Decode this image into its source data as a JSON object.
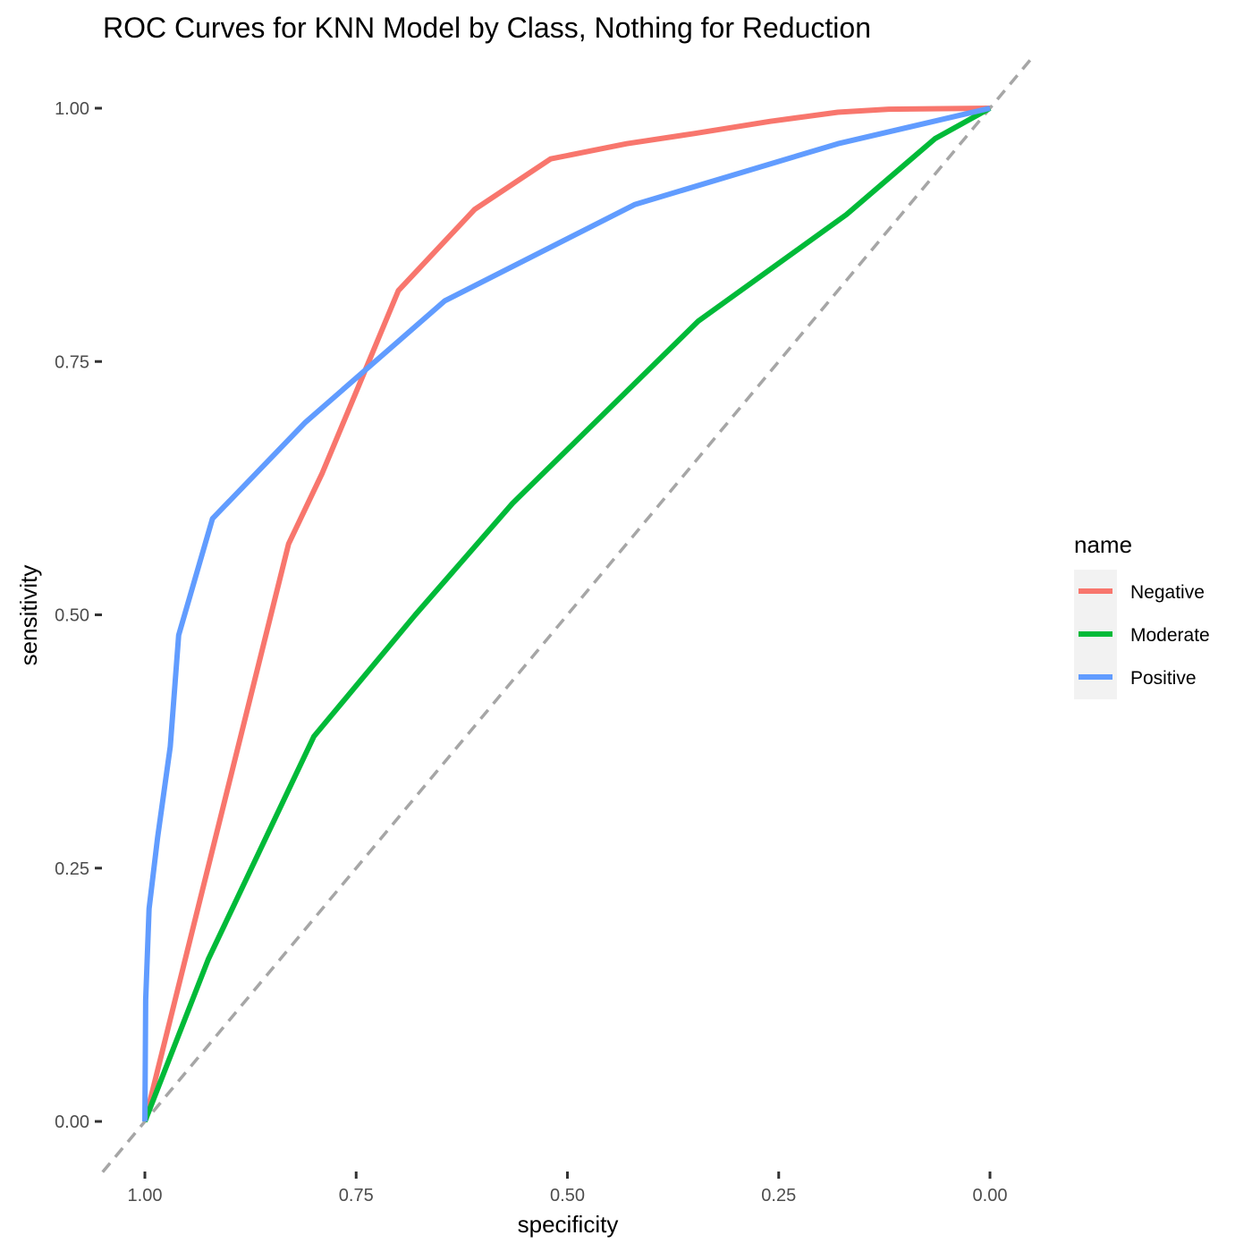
{
  "chart_data": {
    "type": "line",
    "title": "ROC Curves for KNN Model by Class, Nothing for Reduction",
    "xlabel": "specificity",
    "ylabel": "sensitivity",
    "x_reversed": true,
    "xlim": [
      1.05,
      -0.05
    ],
    "ylim": [
      -0.05,
      1.05
    ],
    "x_ticks": [
      {
        "value": 1.0,
        "label": "1.00"
      },
      {
        "value": 0.75,
        "label": "0.75"
      },
      {
        "value": 0.5,
        "label": "0.50"
      },
      {
        "value": 0.25,
        "label": "0.25"
      },
      {
        "value": 0.0,
        "label": "0.00"
      }
    ],
    "y_ticks": [
      {
        "value": 0.0,
        "label": "0.00"
      },
      {
        "value": 0.25,
        "label": "0.25"
      },
      {
        "value": 0.5,
        "label": "0.50"
      },
      {
        "value": 0.75,
        "label": "0.75"
      },
      {
        "value": 1.0,
        "label": "1.00"
      }
    ],
    "grid": false,
    "reference_line": {
      "style": "dashed",
      "color": "#a6a6a6",
      "from": [
        1.05,
        -0.05
      ],
      "to": [
        -0.05,
        1.05
      ]
    },
    "legend": {
      "title": "name",
      "placement": "right"
    },
    "series": [
      {
        "name": "Negative",
        "color": "#f8766d",
        "points": [
          [
            1.0,
            0.0
          ],
          [
            0.83,
            0.57
          ],
          [
            0.79,
            0.64
          ],
          [
            0.75,
            0.72
          ],
          [
            0.7,
            0.82
          ],
          [
            0.61,
            0.9
          ],
          [
            0.52,
            0.95
          ],
          [
            0.43,
            0.965
          ],
          [
            0.35,
            0.975
          ],
          [
            0.26,
            0.987
          ],
          [
            0.18,
            0.996
          ],
          [
            0.12,
            0.999
          ],
          [
            0.0,
            1.0
          ]
        ]
      },
      {
        "name": "Moderate",
        "color": "#00ba38",
        "points": [
          [
            1.0,
            0.0
          ],
          [
            0.925,
            0.16
          ],
          [
            0.8,
            0.38
          ],
          [
            0.68,
            0.5
          ],
          [
            0.565,
            0.61
          ],
          [
            0.345,
            0.79
          ],
          [
            0.17,
            0.895
          ],
          [
            0.065,
            0.97
          ],
          [
            0.0,
            1.0
          ]
        ]
      },
      {
        "name": "Positive",
        "color": "#619cff",
        "points": [
          [
            1.0,
            0.0
          ],
          [
            0.999,
            0.12
          ],
          [
            0.995,
            0.21
          ],
          [
            0.985,
            0.28
          ],
          [
            0.97,
            0.37
          ],
          [
            0.96,
            0.48
          ],
          [
            0.92,
            0.595
          ],
          [
            0.81,
            0.69
          ],
          [
            0.645,
            0.81
          ],
          [
            0.42,
            0.905
          ],
          [
            0.18,
            0.965
          ],
          [
            0.0,
            1.0
          ]
        ]
      }
    ]
  }
}
